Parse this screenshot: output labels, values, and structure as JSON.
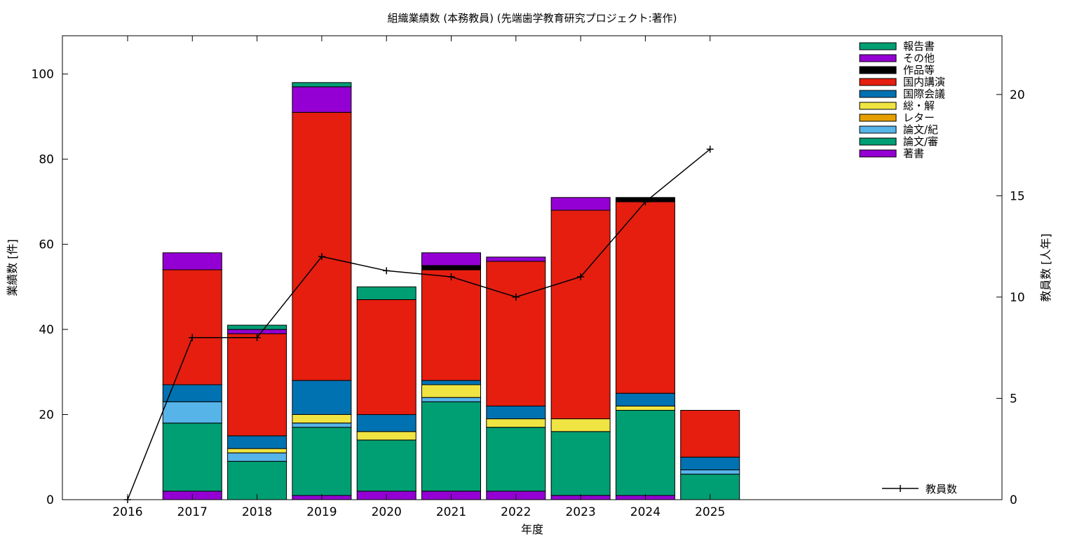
{
  "chart_data": {
    "type": "bar",
    "stacked": true,
    "title": "組織業績数 (本務教員) (先端歯学教育研究プロジェクト:著作)",
    "xlabel": "年度",
    "ylabel": "業績数 [件]",
    "y2label": "教員数 [人年]",
    "categories": [
      "2016",
      "2017",
      "2018",
      "2019",
      "2020",
      "2021",
      "2022",
      "2023",
      "2024",
      "2025"
    ],
    "ylim": [
      0,
      109
    ],
    "y2lim": [
      0,
      22.9
    ],
    "yticks": [
      0,
      20,
      40,
      60,
      80,
      100
    ],
    "y2ticks": [
      0,
      5,
      10,
      15,
      20
    ],
    "grid": false,
    "legend_position": "top-right",
    "series": [
      {
        "name": "著書",
        "color": "#9400d3",
        "values": [
          0,
          2,
          0,
          1,
          2,
          2,
          2,
          1,
          1,
          0
        ]
      },
      {
        "name": "論文/審",
        "color": "#009e73",
        "values": [
          0,
          16,
          9,
          16,
          12,
          21,
          15,
          15,
          20,
          6
        ]
      },
      {
        "name": "論文/紀",
        "color": "#56b4e9",
        "values": [
          0,
          5,
          2,
          1,
          0,
          1,
          0,
          0,
          0,
          1
        ]
      },
      {
        "name": "レター",
        "color": "#e69f00",
        "values": [
          0,
          0,
          0,
          0,
          0,
          0,
          0,
          0,
          0,
          0
        ]
      },
      {
        "name": "総・解",
        "color": "#f0e442",
        "values": [
          0,
          0,
          1,
          2,
          2,
          3,
          2,
          3,
          1,
          0
        ]
      },
      {
        "name": "国際会議",
        "color": "#0072b2",
        "values": [
          0,
          4,
          3,
          8,
          4,
          1,
          3,
          0,
          3,
          3
        ]
      },
      {
        "name": "国内講演",
        "color": "#e51e10",
        "values": [
          0,
          27,
          24,
          63,
          27,
          26,
          34,
          49,
          45,
          11
        ]
      },
      {
        "name": "作品等",
        "color": "#000000",
        "values": [
          0,
          0,
          0,
          0,
          0,
          1,
          0,
          0,
          1,
          0
        ]
      },
      {
        "name": "その他",
        "color": "#9400d3",
        "values": [
          0,
          4,
          1,
          6,
          0,
          3,
          1,
          3,
          0,
          0
        ]
      },
      {
        "name": "報告書",
        "color": "#009e73",
        "values": [
          0,
          0,
          1,
          1,
          3,
          0,
          0,
          0,
          0,
          0
        ]
      }
    ],
    "line": {
      "name": "教員数",
      "axis": "y2",
      "color": "#000000",
      "values": [
        0,
        8,
        8,
        12,
        11.3,
        11,
        10,
        11,
        14.7,
        17.3
      ]
    }
  }
}
